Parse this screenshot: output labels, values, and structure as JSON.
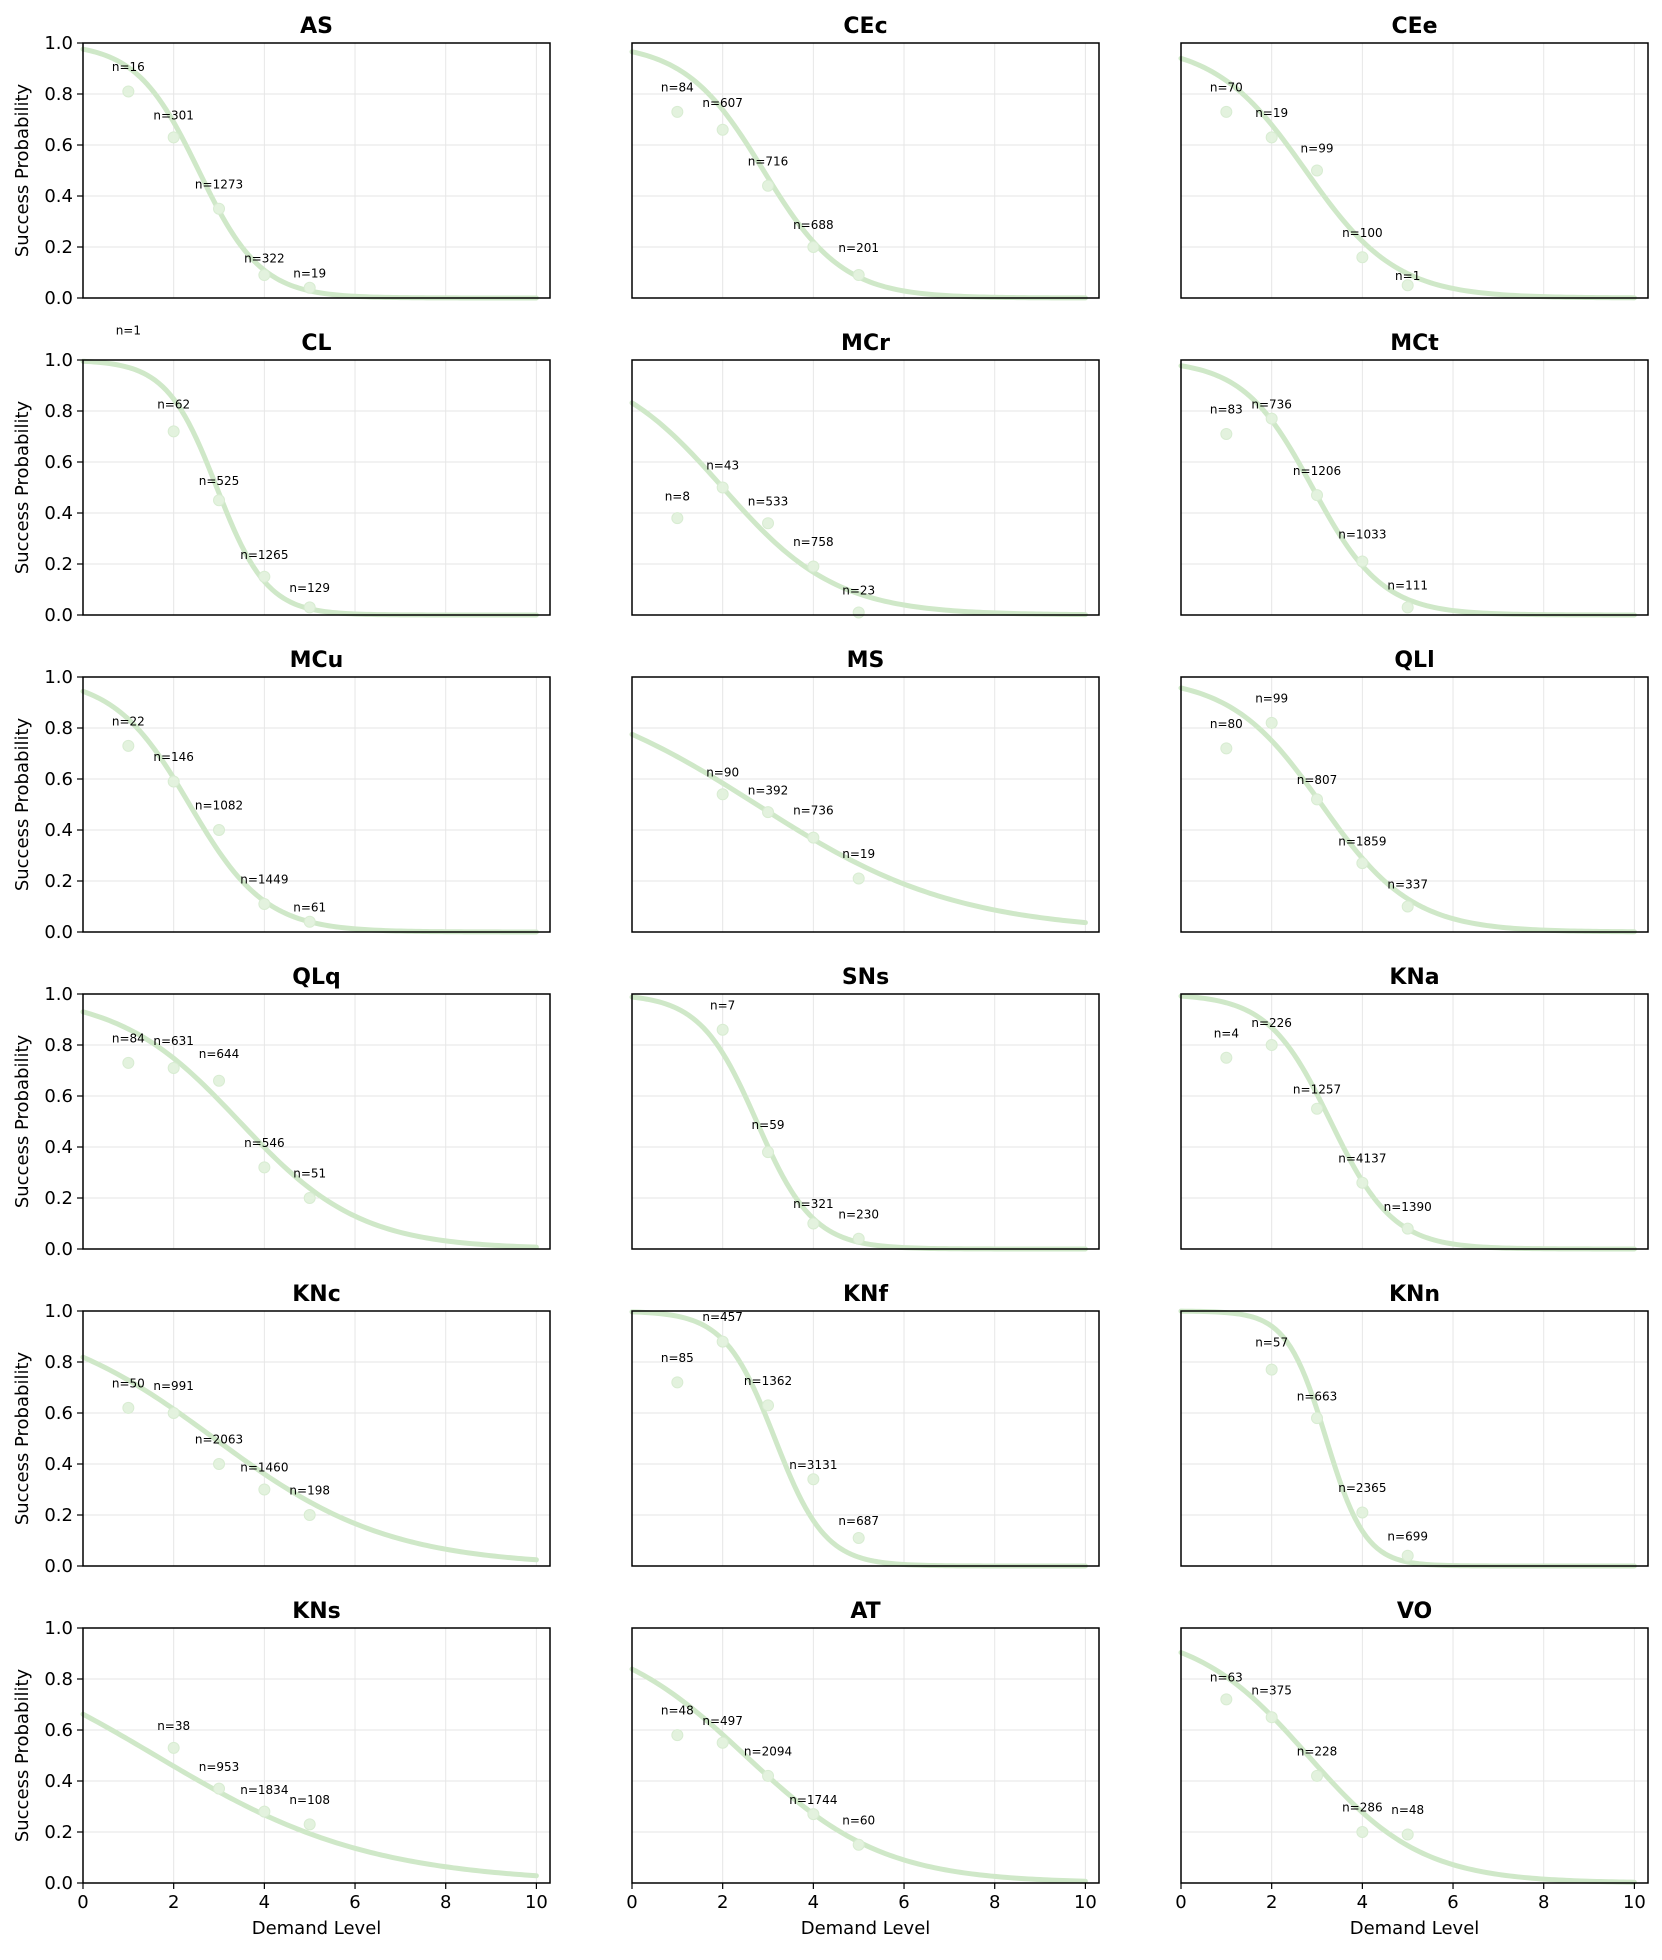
{
  "colors": {
    "curve": "#cfe8c8",
    "point": "#e3f2de",
    "grid": "#e6e6e6",
    "axis": "#000000"
  },
  "chart_data": {
    "type": "line",
    "layout": {
      "rows": 6,
      "cols": 3
    },
    "xlabel": "Demand Level",
    "ylabel": "Success Probability",
    "xlim": [
      0,
      10.3
    ],
    "ylim": [
      0,
      1
    ],
    "xticks": [
      0,
      2,
      4,
      6,
      8,
      10
    ],
    "yticks": [
      0.0,
      0.2,
      0.4,
      0.6,
      0.8,
      1.0
    ],
    "xtick_labels": [
      "0",
      "2",
      "4",
      "6",
      "8",
      "10"
    ],
    "ytick_labels": [
      "0.0",
      "0.2",
      "0.4",
      "0.6",
      "0.8",
      "1.0"
    ],
    "grid": true,
    "panels": [
      {
        "title": "AS",
        "curve": {
          "midpoint": 2.55,
          "slope": 1.45
        },
        "points": [
          {
            "x": 1,
            "y": 0.81
          },
          {
            "x": 2,
            "y": 0.63
          },
          {
            "x": 3,
            "y": 0.35
          },
          {
            "x": 4,
            "y": 0.09
          },
          {
            "x": 5,
            "y": 0.04
          }
        ],
        "annotations": [
          {
            "text": "n=16",
            "x": 1,
            "y": 0.89
          },
          {
            "text": "n=301",
            "x": 2,
            "y": 0.7
          },
          {
            "text": "n=1273",
            "x": 3,
            "y": 0.43
          },
          {
            "text": "n=322",
            "x": 4,
            "y": 0.14
          },
          {
            "text": "n=19",
            "x": 5,
            "y": 0.08
          }
        ]
      },
      {
        "title": "CEc",
        "curve": {
          "midpoint": 2.9,
          "slope": 1.15
        },
        "points": [
          {
            "x": 1,
            "y": 0.73
          },
          {
            "x": 2,
            "y": 0.66
          },
          {
            "x": 3,
            "y": 0.44
          },
          {
            "x": 4,
            "y": 0.2
          },
          {
            "x": 5,
            "y": 0.09
          }
        ],
        "annotations": [
          {
            "text": "n=84",
            "x": 1,
            "y": 0.81
          },
          {
            "text": "n=607",
            "x": 2,
            "y": 0.75
          },
          {
            "text": "n=716",
            "x": 3,
            "y": 0.52
          },
          {
            "text": "n=688",
            "x": 4,
            "y": 0.27
          },
          {
            "text": "n=201",
            "x": 5,
            "y": 0.18
          }
        ]
      },
      {
        "title": "CEe",
        "curve": {
          "midpoint": 2.75,
          "slope": 1.0
        },
        "points": [
          {
            "x": 1,
            "y": 0.73
          },
          {
            "x": 2,
            "y": 0.63
          },
          {
            "x": 3,
            "y": 0.5
          },
          {
            "x": 4,
            "y": 0.16
          },
          {
            "x": 5,
            "y": 0.05
          }
        ],
        "annotations": [
          {
            "text": "n=70",
            "x": 1,
            "y": 0.81
          },
          {
            "text": "n=19",
            "x": 2,
            "y": 0.71
          },
          {
            "text": "n=99",
            "x": 3,
            "y": 0.57
          },
          {
            "text": "n=100",
            "x": 4,
            "y": 0.24
          },
          {
            "text": "n=1",
            "x": 5,
            "y": 0.07
          }
        ]
      },
      {
        "title": "CL",
        "curve": {
          "midpoint": 2.95,
          "slope": 1.8
        },
        "points": [
          {
            "x": 2,
            "y": 0.72
          },
          {
            "x": 3,
            "y": 0.45
          },
          {
            "x": 4,
            "y": 0.15
          },
          {
            "x": 5,
            "y": 0.03
          }
        ],
        "annotations": [
          {
            "text": "n=1",
            "x": 1,
            "y": 1.1
          },
          {
            "text": "n=62",
            "x": 2,
            "y": 0.81
          },
          {
            "text": "n=525",
            "x": 3,
            "y": 0.51
          },
          {
            "text": "n=1265",
            "x": 4,
            "y": 0.22
          },
          {
            "text": "n=129",
            "x": 5,
            "y": 0.09
          }
        ]
      },
      {
        "title": "MCr",
        "curve": {
          "midpoint": 2.0,
          "slope": 0.8
        },
        "points": [
          {
            "x": 1,
            "y": 0.38
          },
          {
            "x": 2,
            "y": 0.5
          },
          {
            "x": 3,
            "y": 0.36
          },
          {
            "x": 4,
            "y": 0.19
          },
          {
            "x": 5,
            "y": 0.01
          }
        ],
        "annotations": [
          {
            "text": "n=8",
            "x": 1,
            "y": 0.45
          },
          {
            "text": "n=43",
            "x": 2,
            "y": 0.57
          },
          {
            "text": "n=533",
            "x": 3,
            "y": 0.43
          },
          {
            "text": "n=758",
            "x": 4,
            "y": 0.27
          },
          {
            "text": "n=23",
            "x": 5,
            "y": 0.08
          }
        ]
      },
      {
        "title": "MCt",
        "curve": {
          "midpoint": 2.9,
          "slope": 1.3
        },
        "points": [
          {
            "x": 1,
            "y": 0.71
          },
          {
            "x": 2,
            "y": 0.77
          },
          {
            "x": 3,
            "y": 0.47
          },
          {
            "x": 4,
            "y": 0.21
          },
          {
            "x": 5,
            "y": 0.03
          }
        ],
        "annotations": [
          {
            "text": "n=83",
            "x": 1,
            "y": 0.79
          },
          {
            "text": "n=736",
            "x": 2,
            "y": 0.81
          },
          {
            "text": "n=1206",
            "x": 3,
            "y": 0.55
          },
          {
            "text": "n=1033",
            "x": 4,
            "y": 0.3
          },
          {
            "text": "n=111",
            "x": 5,
            "y": 0.1
          }
        ]
      },
      {
        "title": "MCu",
        "curve": {
          "midpoint": 2.35,
          "slope": 1.2
        },
        "points": [
          {
            "x": 1,
            "y": 0.73
          },
          {
            "x": 2,
            "y": 0.59
          },
          {
            "x": 3,
            "y": 0.4
          },
          {
            "x": 4,
            "y": 0.11
          },
          {
            "x": 5,
            "y": 0.04
          }
        ],
        "annotations": [
          {
            "text": "n=22",
            "x": 1,
            "y": 0.81
          },
          {
            "text": "n=146",
            "x": 2,
            "y": 0.67
          },
          {
            "text": "n=1082",
            "x": 3,
            "y": 0.48
          },
          {
            "text": "n=1449",
            "x": 4,
            "y": 0.19
          },
          {
            "text": "n=61",
            "x": 5,
            "y": 0.08
          }
        ]
      },
      {
        "title": "MS",
        "curve": {
          "midpoint": 2.75,
          "slope": 0.45
        },
        "points": [
          {
            "x": 2,
            "y": 0.54
          },
          {
            "x": 3,
            "y": 0.47
          },
          {
            "x": 4,
            "y": 0.37
          },
          {
            "x": 5,
            "y": 0.21
          }
        ],
        "annotations": [
          {
            "text": "n=90",
            "x": 2,
            "y": 0.61
          },
          {
            "text": "n=392",
            "x": 3,
            "y": 0.54
          },
          {
            "text": "n=736",
            "x": 4,
            "y": 0.46
          },
          {
            "text": "n=19",
            "x": 5,
            "y": 0.29
          }
        ]
      },
      {
        "title": "QLl",
        "curve": {
          "midpoint": 3.1,
          "slope": 1.0
        },
        "points": [
          {
            "x": 1,
            "y": 0.72
          },
          {
            "x": 2,
            "y": 0.82
          },
          {
            "x": 3,
            "y": 0.52
          },
          {
            "x": 4,
            "y": 0.27
          },
          {
            "x": 5,
            "y": 0.1
          }
        ],
        "annotations": [
          {
            "text": "n=80",
            "x": 1,
            "y": 0.8
          },
          {
            "text": "n=99",
            "x": 2,
            "y": 0.9
          },
          {
            "text": "n=807",
            "x": 3,
            "y": 0.58
          },
          {
            "text": "n=1859",
            "x": 4,
            "y": 0.34
          },
          {
            "text": "n=337",
            "x": 5,
            "y": 0.17
          }
        ]
      },
      {
        "title": "QLq",
        "curve": {
          "midpoint": 3.45,
          "slope": 0.75
        },
        "points": [
          {
            "x": 1,
            "y": 0.73
          },
          {
            "x": 2,
            "y": 0.71
          },
          {
            "x": 3,
            "y": 0.66
          },
          {
            "x": 4,
            "y": 0.32
          },
          {
            "x": 5,
            "y": 0.2
          }
        ],
        "annotations": [
          {
            "text": "n=84",
            "x": 1,
            "y": 0.81
          },
          {
            "text": "n=631",
            "x": 2,
            "y": 0.8
          },
          {
            "text": "n=644",
            "x": 3,
            "y": 0.75
          },
          {
            "text": "n=546",
            "x": 4,
            "y": 0.4
          },
          {
            "text": "n=51",
            "x": 5,
            "y": 0.28
          }
        ]
      },
      {
        "title": "SNs",
        "curve": {
          "midpoint": 2.75,
          "slope": 1.6
        },
        "points": [
          {
            "x": 2,
            "y": 0.86
          },
          {
            "x": 3,
            "y": 0.38
          },
          {
            "x": 4,
            "y": 0.1
          },
          {
            "x": 5,
            "y": 0.04
          }
        ],
        "annotations": [
          {
            "text": "n=7",
            "x": 2,
            "y": 0.94
          },
          {
            "text": "n=59",
            "x": 3,
            "y": 0.47
          },
          {
            "text": "n=321",
            "x": 4,
            "y": 0.16
          },
          {
            "text": "n=230",
            "x": 5,
            "y": 0.12
          }
        ]
      },
      {
        "title": "KNa",
        "curve": {
          "midpoint": 3.3,
          "slope": 1.45
        },
        "points": [
          {
            "x": 1,
            "y": 0.75
          },
          {
            "x": 2,
            "y": 0.8
          },
          {
            "x": 3,
            "y": 0.55
          },
          {
            "x": 4,
            "y": 0.26
          },
          {
            "x": 5,
            "y": 0.08
          }
        ],
        "annotations": [
          {
            "text": "n=4",
            "x": 1,
            "y": 0.83
          },
          {
            "text": "n=226",
            "x": 2,
            "y": 0.87
          },
          {
            "text": "n=1257",
            "x": 3,
            "y": 0.61
          },
          {
            "text": "n=4137",
            "x": 4,
            "y": 0.34
          },
          {
            "text": "n=1390",
            "x": 5,
            "y": 0.15
          }
        ]
      },
      {
        "title": "KNc",
        "curve": {
          "midpoint": 2.9,
          "slope": 0.52
        },
        "points": [
          {
            "x": 1,
            "y": 0.62
          },
          {
            "x": 2,
            "y": 0.6
          },
          {
            "x": 3,
            "y": 0.4
          },
          {
            "x": 4,
            "y": 0.3
          },
          {
            "x": 5,
            "y": 0.2
          }
        ],
        "annotations": [
          {
            "text": "n=50",
            "x": 1,
            "y": 0.7
          },
          {
            "text": "n=991",
            "x": 2,
            "y": 0.69
          },
          {
            "text": "n=2063",
            "x": 3,
            "y": 0.48
          },
          {
            "text": "n=1460",
            "x": 4,
            "y": 0.37
          },
          {
            "text": "n=198",
            "x": 5,
            "y": 0.28
          }
        ]
      },
      {
        "title": "KNf",
        "curve": {
          "midpoint": 3.15,
          "slope": 1.8
        },
        "points": [
          {
            "x": 1,
            "y": 0.72
          },
          {
            "x": 2,
            "y": 0.88
          },
          {
            "x": 3,
            "y": 0.63
          },
          {
            "x": 4,
            "y": 0.34
          },
          {
            "x": 5,
            "y": 0.11
          }
        ],
        "annotations": [
          {
            "text": "n=85",
            "x": 1,
            "y": 0.8
          },
          {
            "text": "n=457",
            "x": 2,
            "y": 0.96
          },
          {
            "text": "n=1362",
            "x": 3,
            "y": 0.71
          },
          {
            "text": "n=3131",
            "x": 4,
            "y": 0.38
          },
          {
            "text": "n=687",
            "x": 5,
            "y": 0.16
          }
        ]
      },
      {
        "title": "KNn",
        "curve": {
          "midpoint": 3.2,
          "slope": 2.3
        },
        "points": [
          {
            "x": 2,
            "y": 0.77
          },
          {
            "x": 3,
            "y": 0.58
          },
          {
            "x": 4,
            "y": 0.21
          },
          {
            "x": 5,
            "y": 0.04
          }
        ],
        "annotations": [
          {
            "text": "n=57",
            "x": 2,
            "y": 0.86
          },
          {
            "text": "n=663",
            "x": 3,
            "y": 0.65
          },
          {
            "text": "n=2365",
            "x": 4,
            "y": 0.29
          },
          {
            "text": "n=699",
            "x": 5,
            "y": 0.1
          }
        ]
      },
      {
        "title": "KNs",
        "curve": {
          "midpoint": 1.6,
          "slope": 0.42
        },
        "points": [
          {
            "x": 2,
            "y": 0.53
          },
          {
            "x": 3,
            "y": 0.37
          },
          {
            "x": 4,
            "y": 0.28
          },
          {
            "x": 5,
            "y": 0.23
          }
        ],
        "annotations": [
          {
            "text": "n=38",
            "x": 2,
            "y": 0.6
          },
          {
            "text": "n=953",
            "x": 3,
            "y": 0.44
          },
          {
            "text": "n=1834",
            "x": 4,
            "y": 0.35
          },
          {
            "text": "n=108",
            "x": 5,
            "y": 0.31
          }
        ]
      },
      {
        "title": "AT",
        "curve": {
          "midpoint": 2.5,
          "slope": 0.66
        },
        "points": [
          {
            "x": 1,
            "y": 0.58
          },
          {
            "x": 2,
            "y": 0.55
          },
          {
            "x": 3,
            "y": 0.42
          },
          {
            "x": 4,
            "y": 0.27
          },
          {
            "x": 5,
            "y": 0.15
          }
        ],
        "annotations": [
          {
            "text": "n=48",
            "x": 1,
            "y": 0.66
          },
          {
            "text": "n=497",
            "x": 2,
            "y": 0.62
          },
          {
            "text": "n=2094",
            "x": 3,
            "y": 0.5
          },
          {
            "text": "n=1744",
            "x": 4,
            "y": 0.31
          },
          {
            "text": "n=60",
            "x": 5,
            "y": 0.23
          }
        ]
      },
      {
        "title": "VO",
        "curve": {
          "midpoint": 2.8,
          "slope": 0.8
        },
        "points": [
          {
            "x": 1,
            "y": 0.72
          },
          {
            "x": 2,
            "y": 0.65
          },
          {
            "x": 3,
            "y": 0.42
          },
          {
            "x": 4,
            "y": 0.2
          },
          {
            "x": 5,
            "y": 0.19
          }
        ],
        "annotations": [
          {
            "text": "n=63",
            "x": 1,
            "y": 0.79
          },
          {
            "text": "n=375",
            "x": 2,
            "y": 0.74
          },
          {
            "text": "n=228",
            "x": 3,
            "y": 0.5
          },
          {
            "text": "n=286",
            "x": 4,
            "y": 0.28
          },
          {
            "text": "n=48",
            "x": 5,
            "y": 0.27
          }
        ]
      }
    ]
  }
}
